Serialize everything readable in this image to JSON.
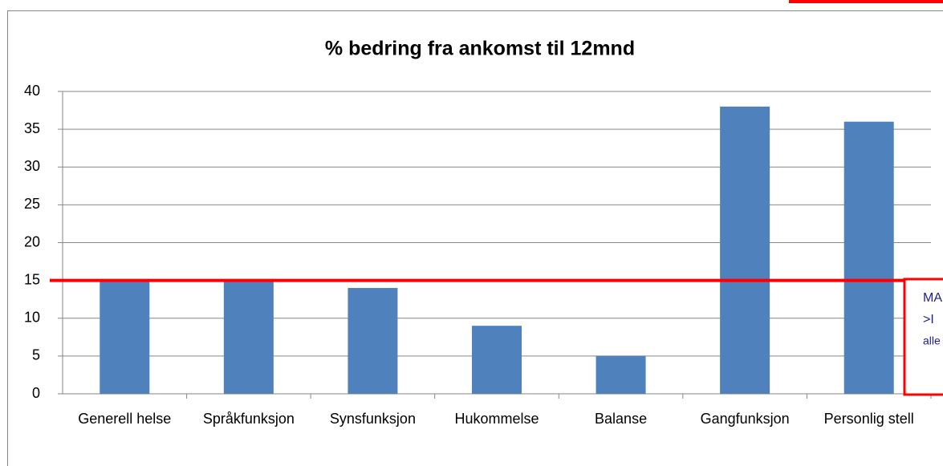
{
  "chart_data": {
    "type": "bar",
    "title": "% bedring fra ankomst til 12mnd",
    "categories": [
      "Generell helse",
      "Språkfunksjon",
      "Synsfunksjon",
      "Hukommelse",
      "Balanse",
      "Gangfunksjon",
      "Personlig stell"
    ],
    "values": [
      15,
      15,
      14,
      9,
      5,
      38,
      36
    ],
    "color": "#4f81bd",
    "ylim": [
      0,
      40
    ],
    "yticks": [
      0,
      5,
      10,
      15,
      20,
      25,
      30,
      35,
      40
    ],
    "grid": true,
    "reference_line": {
      "value": 15,
      "color": "#ff0000"
    },
    "annotation": [
      "MA",
      ">I",
      "alle"
    ]
  }
}
